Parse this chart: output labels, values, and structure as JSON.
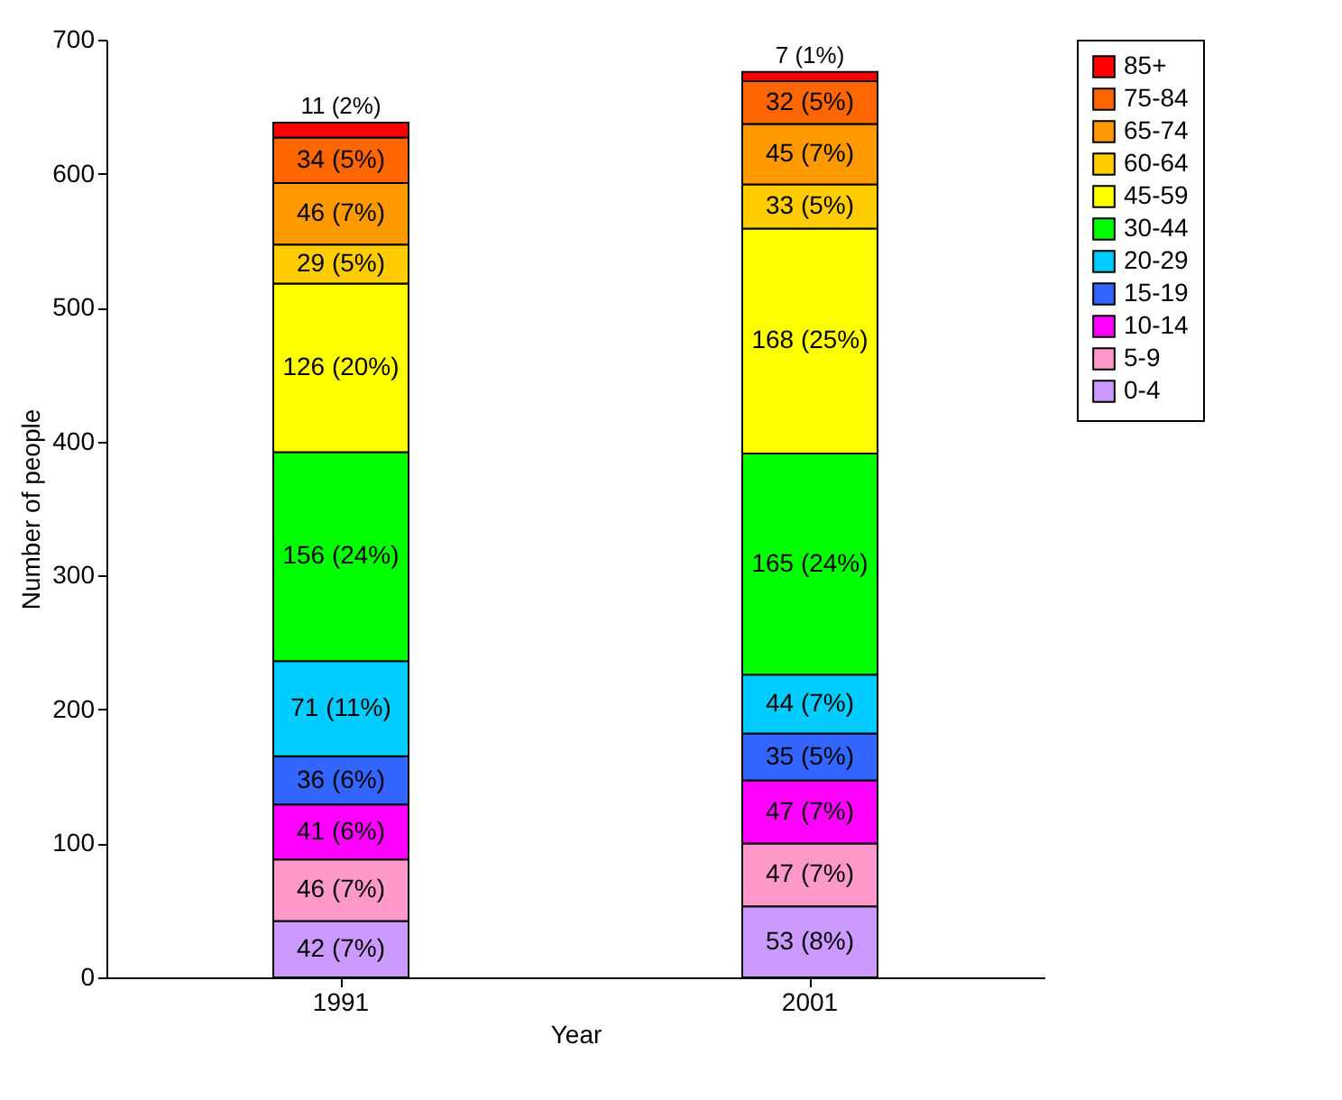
{
  "chart_data": {
    "type": "bar",
    "stacked": true,
    "xlabel": "Year",
    "ylabel": "Number of people",
    "categories": [
      "1991",
      "2001"
    ],
    "ylim": [
      0,
      700
    ],
    "yticks": [
      0,
      100,
      200,
      300,
      400,
      500,
      600,
      700
    ],
    "grid": false,
    "legend": "right",
    "series": [
      {
        "name": "0-4",
        "color": "#cc99ff",
        "values": [
          42,
          53
        ],
        "value_labels": [
          "42 (7%)",
          "53 (8%)"
        ]
      },
      {
        "name": "5-9",
        "color": "#ff99cc",
        "values": [
          46,
          47
        ],
        "value_labels": [
          "46 (7%)",
          "47 (7%)"
        ]
      },
      {
        "name": "10-14",
        "color": "#ff00ff",
        "values": [
          41,
          47
        ],
        "value_labels": [
          "41 (6%)",
          "47 (7%)"
        ]
      },
      {
        "name": "15-19",
        "color": "#3366ff",
        "values": [
          36,
          35
        ],
        "value_labels": [
          "36 (6%)",
          "35 (5%)"
        ]
      },
      {
        "name": "20-29",
        "color": "#00ccff",
        "values": [
          71,
          44
        ],
        "value_labels": [
          "71 (11%)",
          "44 (7%)"
        ]
      },
      {
        "name": "30-44",
        "color": "#00ff00",
        "values": [
          156,
          165
        ],
        "value_labels": [
          "156 (24%)",
          "165 (24%)"
        ]
      },
      {
        "name": "45-59",
        "color": "#ffff00",
        "values": [
          126,
          168
        ],
        "value_labels": [
          "126 (20%)",
          "168 (25%)"
        ]
      },
      {
        "name": "60-64",
        "color": "#ffcc00",
        "values": [
          29,
          33
        ],
        "value_labels": [
          "29 (5%)",
          "33 (5%)"
        ]
      },
      {
        "name": "65-74",
        "color": "#ff9900",
        "values": [
          46,
          45
        ],
        "value_labels": [
          "46 (7%)",
          "45 (7%)"
        ]
      },
      {
        "name": "75-84",
        "color": "#ff6600",
        "values": [
          34,
          32
        ],
        "value_labels": [
          "34 (5%)",
          "32 (5%)"
        ]
      },
      {
        "name": "85+",
        "color": "#ff0000",
        "values": [
          11,
          7
        ],
        "value_labels": [
          "11 (2%)",
          "7 (1%)"
        ]
      }
    ]
  }
}
